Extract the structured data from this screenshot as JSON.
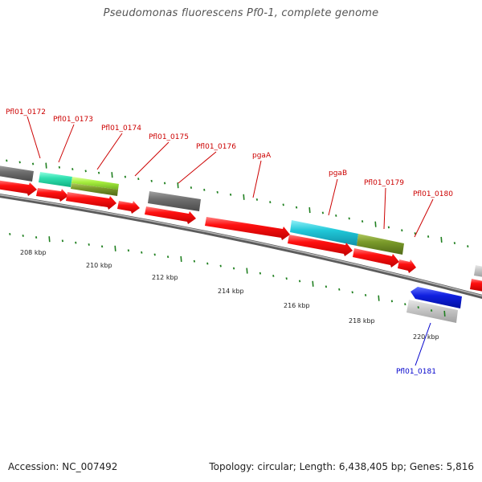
{
  "title": "Pseudomonas fluorescens Pf0-1, complete genome",
  "footer": {
    "accession": "Accession: NC_007492",
    "summary": "Topology: circular; Length: 6,438,405 bp; Genes: 5,816"
  },
  "colors": {
    "cds": "#ff1010",
    "gene_gray": "#6f6f6f",
    "gene_lightgray": "#c8c8c8",
    "gene_aqua": "#30e0b0",
    "gene_lime": "#a8f040",
    "gene_olive": "#7a9a2a",
    "gene_cyan": "#20c8d8",
    "gene_blue": "#1020e0",
    "label_red": "#cc0000",
    "label_blue": "#0000cc",
    "tick": "#208020",
    "backbone": "#888888"
  },
  "kbp_labels": [
    "208 kbp",
    "210 kbp",
    "212 kbp",
    "214 kbp",
    "216 kbp",
    "218 kbp",
    "220 kbp"
  ],
  "gene_labels": [
    {
      "text": "Pfl01_0172",
      "color": "red"
    },
    {
      "text": "Pfl01_0173",
      "color": "red"
    },
    {
      "text": "Pfl01_0174",
      "color": "red"
    },
    {
      "text": "Pfl01_0175",
      "color": "red"
    },
    {
      "text": "Pfl01_0176",
      "color": "red"
    },
    {
      "text": "pgaA",
      "color": "red"
    },
    {
      "text": "pgaB",
      "color": "red"
    },
    {
      "text": "Pfl01_0179",
      "color": "red"
    },
    {
      "text": "Pfl01_0180",
      "color": "red"
    },
    {
      "text": "Pfl01_0181",
      "color": "blue"
    }
  ]
}
